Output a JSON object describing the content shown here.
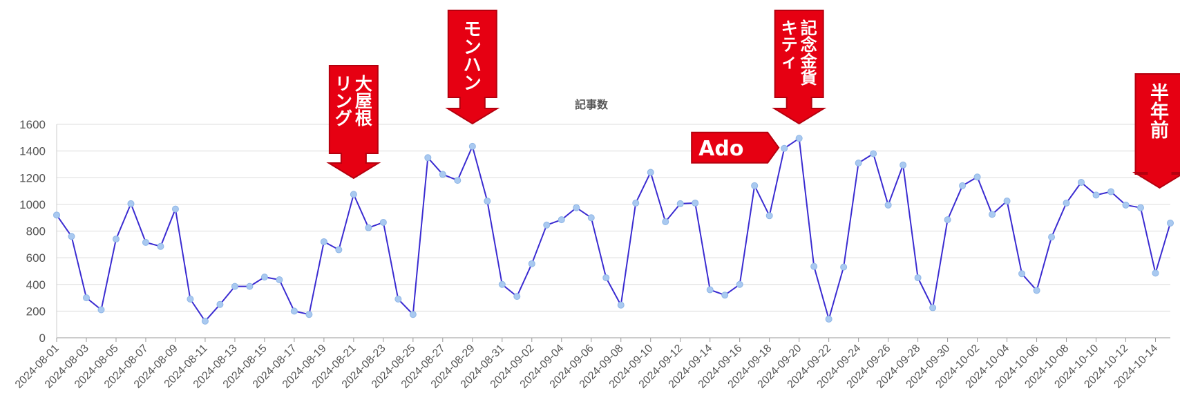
{
  "chart_data": {
    "type": "line",
    "title": "記事数",
    "ylim": [
      0,
      1600
    ],
    "yticks": [
      0,
      200,
      400,
      600,
      800,
      1000,
      1200,
      1400,
      1600
    ],
    "grid": true,
    "line_color": "#3a2bd1",
    "marker_color": "#a9c9f0",
    "x": [
      "2024-08-01",
      "2024-08-02",
      "2024-08-03",
      "2024-08-04",
      "2024-08-05",
      "2024-08-06",
      "2024-08-07",
      "2024-08-08",
      "2024-08-09",
      "2024-08-10",
      "2024-08-11",
      "2024-08-12",
      "2024-08-13",
      "2024-08-14",
      "2024-08-15",
      "2024-08-16",
      "2024-08-17",
      "2024-08-18",
      "2024-08-19",
      "2024-08-20",
      "2024-08-21",
      "2024-08-22",
      "2024-08-23",
      "2024-08-24",
      "2024-08-25",
      "2024-08-26",
      "2024-08-27",
      "2024-08-28",
      "2024-08-29",
      "2024-08-30",
      "2024-08-31",
      "2024-09-01",
      "2024-09-02",
      "2024-09-03",
      "2024-09-04",
      "2024-09-05",
      "2024-09-06",
      "2024-09-07",
      "2024-09-08",
      "2024-09-09",
      "2024-09-10",
      "2024-09-11",
      "2024-09-12",
      "2024-09-13",
      "2024-09-14",
      "2024-09-15",
      "2024-09-16",
      "2024-09-17",
      "2024-09-18",
      "2024-09-19",
      "2024-09-20",
      "2024-09-21",
      "2024-09-22",
      "2024-09-23",
      "2024-09-24",
      "2024-09-25",
      "2024-09-26",
      "2024-09-27",
      "2024-09-28",
      "2024-09-29",
      "2024-09-30",
      "2024-10-01",
      "2024-10-02",
      "2024-10-03",
      "2024-10-04",
      "2024-10-05",
      "2024-10-06",
      "2024-10-07",
      "2024-10-08",
      "2024-10-09",
      "2024-10-10",
      "2024-10-11",
      "2024-10-12",
      "2024-10-13",
      "2024-10-14",
      "2024-10-15"
    ],
    "x_tick_labels": [
      "2024-08-01",
      "2024-08-03",
      "2024-08-05",
      "2024-08-07",
      "2024-08-09",
      "2024-08-11",
      "2024-08-13",
      "2024-08-15",
      "2024-08-17",
      "2024-08-19",
      "2024-08-21",
      "2024-08-23",
      "2024-08-25",
      "2024-08-27",
      "2024-08-29",
      "2024-08-31",
      "2024-09-02",
      "2024-09-04",
      "2024-09-06",
      "2024-09-08",
      "2024-09-10",
      "2024-09-12",
      "2024-09-14",
      "2024-09-16",
      "2024-09-18",
      "2024-09-20",
      "2024-09-22",
      "2024-09-24",
      "2024-09-26",
      "2024-09-28",
      "2024-09-30",
      "2024-10-02",
      "2024-10-04",
      "2024-10-06",
      "2024-10-08",
      "2024-10-10",
      "2024-10-12",
      "2024-10-14"
    ],
    "values": [
      920,
      760,
      300,
      210,
      740,
      1005,
      715,
      685,
      965,
      290,
      125,
      250,
      385,
      385,
      455,
      435,
      200,
      175,
      720,
      660,
      1075,
      825,
      865,
      290,
      175,
      1350,
      1225,
      1180,
      1435,
      1025,
      400,
      310,
      555,
      845,
      885,
      975,
      900,
      450,
      245,
      1010,
      1240,
      870,
      1005,
      1010,
      360,
      320,
      400,
      1140,
      915,
      1420,
      1495,
      535,
      140,
      530,
      1310,
      1380,
      995,
      1295,
      450,
      225,
      885,
      1140,
      1205,
      925,
      1025,
      480,
      355,
      755,
      1010,
      1165,
      1070,
      1095,
      995,
      975,
      485,
      860
    ],
    "annotations": [
      {
        "label_lines": [
          "大屋根",
          "リング"
        ],
        "date": "2024-08-21",
        "color": "#e60012",
        "border": "#b5000e"
      },
      {
        "label_lines": [
          "モンハン"
        ],
        "date": "2024-08-29",
        "color": "#e60012",
        "border": "#b5000e"
      },
      {
        "label_lines": [
          "Ado"
        ],
        "date": "2024-09-19",
        "color": "#e60012",
        "border": "#b5000e"
      },
      {
        "label_lines": [
          "記念金貨",
          "キティ"
        ],
        "date": "2024-09-20",
        "color": "#e60012",
        "border": "#b5000e"
      },
      {
        "label_lines": [
          "半年前"
        ],
        "date": "2024-10-14",
        "color": "#e60012",
        "border": "#b5000e"
      }
    ]
  }
}
